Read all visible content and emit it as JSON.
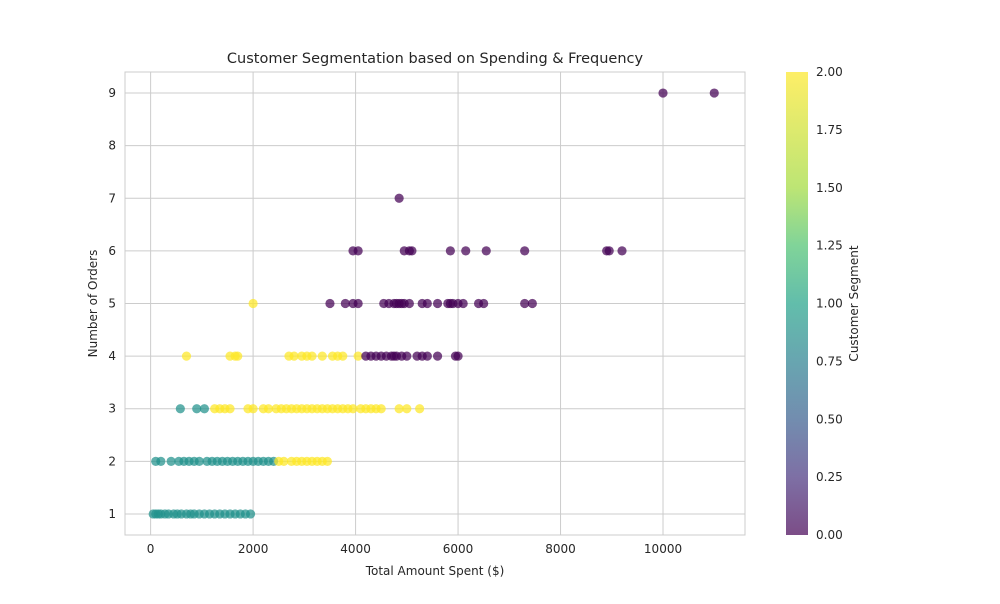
{
  "chart_data": {
    "type": "scatter",
    "title": "Customer Segmentation based on Spending & Frequency",
    "xlabel": "Total Amount Spent ($)",
    "ylabel": "Number of Orders",
    "xlim": [
      -500,
      11600
    ],
    "ylim": [
      0.6,
      9.4
    ],
    "xticks": [
      0,
      2000,
      4000,
      6000,
      8000,
      10000
    ],
    "yticks": [
      1,
      2,
      3,
      4,
      5,
      6,
      7,
      8,
      9
    ],
    "grid": true,
    "colorbar": {
      "label": "Customer Segment",
      "range": [
        0.0,
        2.0
      ],
      "ticks": [
        "0.00",
        "0.25",
        "0.50",
        "0.75",
        "1.00",
        "1.25",
        "1.50",
        "1.75",
        "2.00"
      ],
      "colormap": "viridis"
    },
    "segment_colors": [
      "#440154",
      "#21918c",
      "#fde725"
    ],
    "series": [
      {
        "segment": 0,
        "points": [
          [
            10000,
            9
          ],
          [
            11000,
            9
          ],
          [
            4850,
            7
          ],
          [
            3950,
            6
          ],
          [
            4050,
            6
          ],
          [
            4950,
            6
          ],
          [
            5050,
            6
          ],
          [
            5100,
            6
          ],
          [
            5850,
            6
          ],
          [
            6150,
            6
          ],
          [
            6550,
            6
          ],
          [
            7300,
            6
          ],
          [
            8900,
            6
          ],
          [
            8950,
            6
          ],
          [
            9200,
            6
          ],
          [
            3500,
            5
          ],
          [
            3800,
            5
          ],
          [
            3950,
            5
          ],
          [
            4050,
            5
          ],
          [
            4550,
            5
          ],
          [
            4650,
            5
          ],
          [
            4750,
            5
          ],
          [
            4800,
            5
          ],
          [
            4850,
            5
          ],
          [
            4900,
            5
          ],
          [
            4950,
            5
          ],
          [
            5050,
            5
          ],
          [
            5300,
            5
          ],
          [
            5400,
            5
          ],
          [
            5600,
            5
          ],
          [
            5800,
            5
          ],
          [
            5850,
            5
          ],
          [
            5900,
            5
          ],
          [
            6000,
            5
          ],
          [
            6100,
            5
          ],
          [
            6400,
            5
          ],
          [
            6500,
            5
          ],
          [
            7300,
            5
          ],
          [
            7450,
            5
          ],
          [
            4200,
            4
          ],
          [
            4300,
            4
          ],
          [
            4400,
            4
          ],
          [
            4500,
            4
          ],
          [
            4600,
            4
          ],
          [
            4700,
            4
          ],
          [
            4750,
            4
          ],
          [
            4800,
            4
          ],
          [
            4900,
            4
          ],
          [
            5000,
            4
          ],
          [
            5200,
            4
          ],
          [
            5300,
            4
          ],
          [
            5400,
            4
          ],
          [
            5600,
            4
          ],
          [
            5950,
            4
          ],
          [
            6000,
            4
          ]
        ]
      },
      {
        "segment": 1,
        "points": [
          [
            50,
            1
          ],
          [
            100,
            1
          ],
          [
            150,
            1
          ],
          [
            200,
            1
          ],
          [
            280,
            1
          ],
          [
            350,
            1
          ],
          [
            450,
            1
          ],
          [
            520,
            1
          ],
          [
            600,
            1
          ],
          [
            700,
            1
          ],
          [
            780,
            1
          ],
          [
            850,
            1
          ],
          [
            950,
            1
          ],
          [
            1050,
            1
          ],
          [
            1150,
            1
          ],
          [
            1250,
            1
          ],
          [
            1350,
            1
          ],
          [
            1450,
            1
          ],
          [
            1550,
            1
          ],
          [
            1650,
            1
          ],
          [
            1750,
            1
          ],
          [
            1850,
            1
          ],
          [
            1950,
            1
          ],
          [
            100,
            2
          ],
          [
            200,
            2
          ],
          [
            400,
            2
          ],
          [
            550,
            2
          ],
          [
            650,
            2
          ],
          [
            750,
            2
          ],
          [
            850,
            2
          ],
          [
            950,
            2
          ],
          [
            1100,
            2
          ],
          [
            1200,
            2
          ],
          [
            1300,
            2
          ],
          [
            1400,
            2
          ],
          [
            1500,
            2
          ],
          [
            1600,
            2
          ],
          [
            1700,
            2
          ],
          [
            1800,
            2
          ],
          [
            1900,
            2
          ],
          [
            2000,
            2
          ],
          [
            2100,
            2
          ],
          [
            2200,
            2
          ],
          [
            2300,
            2
          ],
          [
            2400,
            2
          ],
          [
            580,
            3
          ],
          [
            900,
            3
          ],
          [
            1050,
            3
          ]
        ]
      },
      {
        "segment": 2,
        "points": [
          [
            1250,
            3
          ],
          [
            1350,
            3
          ],
          [
            1450,
            3
          ],
          [
            1550,
            3
          ],
          [
            1900,
            3
          ],
          [
            2000,
            3
          ],
          [
            2200,
            3
          ],
          [
            2300,
            3
          ],
          [
            2450,
            3
          ],
          [
            2550,
            3
          ],
          [
            2650,
            3
          ],
          [
            2750,
            3
          ],
          [
            2850,
            3
          ],
          [
            2950,
            3
          ],
          [
            3050,
            3
          ],
          [
            3150,
            3
          ],
          [
            3250,
            3
          ],
          [
            3350,
            3
          ],
          [
            3450,
            3
          ],
          [
            3550,
            3
          ],
          [
            3650,
            3
          ],
          [
            3750,
            3
          ],
          [
            3850,
            3
          ],
          [
            3950,
            3
          ],
          [
            4100,
            3
          ],
          [
            4200,
            3
          ],
          [
            4300,
            3
          ],
          [
            4400,
            3
          ],
          [
            4500,
            3
          ],
          [
            4850,
            3
          ],
          [
            5000,
            3
          ],
          [
            5250,
            3
          ],
          [
            2500,
            2
          ],
          [
            2600,
            2
          ],
          [
            2750,
            2
          ],
          [
            2850,
            2
          ],
          [
            2950,
            2
          ],
          [
            3050,
            2
          ],
          [
            3150,
            2
          ],
          [
            3250,
            2
          ],
          [
            3350,
            2
          ],
          [
            3450,
            2
          ],
          [
            700,
            4
          ],
          [
            1550,
            4
          ],
          [
            1650,
            4
          ],
          [
            1700,
            4
          ],
          [
            2700,
            4
          ],
          [
            2800,
            4
          ],
          [
            2950,
            4
          ],
          [
            3050,
            4
          ],
          [
            3150,
            4
          ],
          [
            3350,
            4
          ],
          [
            3550,
            4
          ],
          [
            3650,
            4
          ],
          [
            3750,
            4
          ],
          [
            4050,
            4
          ],
          [
            2000,
            5
          ]
        ]
      }
    ]
  }
}
